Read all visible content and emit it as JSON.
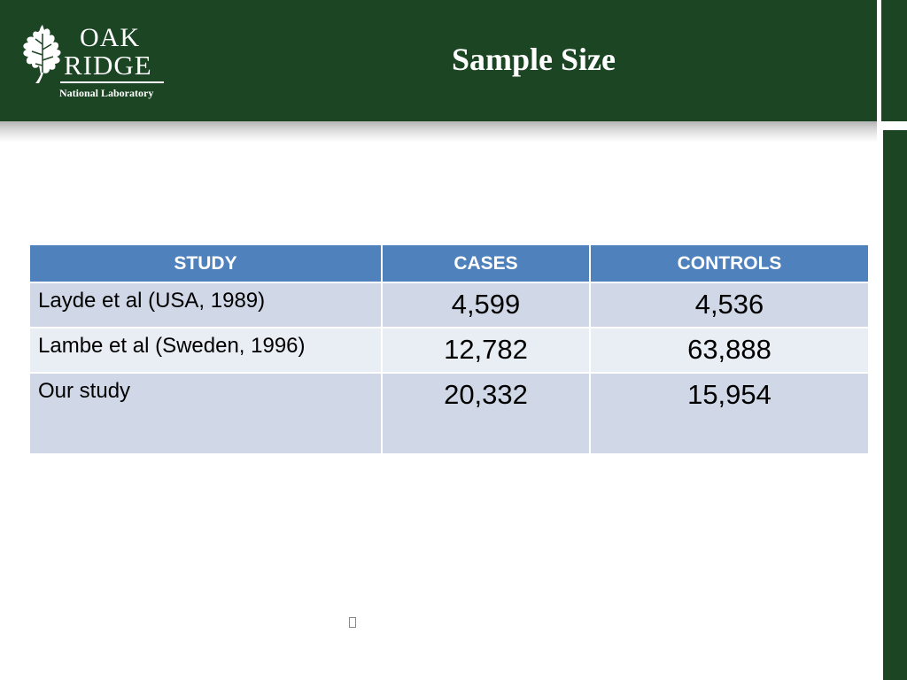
{
  "header": {
    "title": "Sample Size",
    "logo": {
      "line1": "OAK",
      "line2": "RIDGE",
      "line3": "National Laboratory",
      "icon": "oak-leaf-icon"
    }
  },
  "table": {
    "columns": [
      "STUDY",
      "CASES",
      "CONTROLS"
    ],
    "rows": [
      {
        "study": "Layde et al (USA, 1989)",
        "cases": "4,599",
        "controls": "4,536"
      },
      {
        "study": "Lambe et al (Sweden, 1996)",
        "cases": "12,782",
        "controls": "63,888"
      },
      {
        "study": "Our study",
        "cases": "20,332",
        "controls": "15,954"
      }
    ]
  },
  "colors": {
    "header_bg": "#1b4523",
    "table_header": "#4f81bd",
    "row_odd": "#d0d8e8",
    "row_even": "#e9edf4"
  }
}
